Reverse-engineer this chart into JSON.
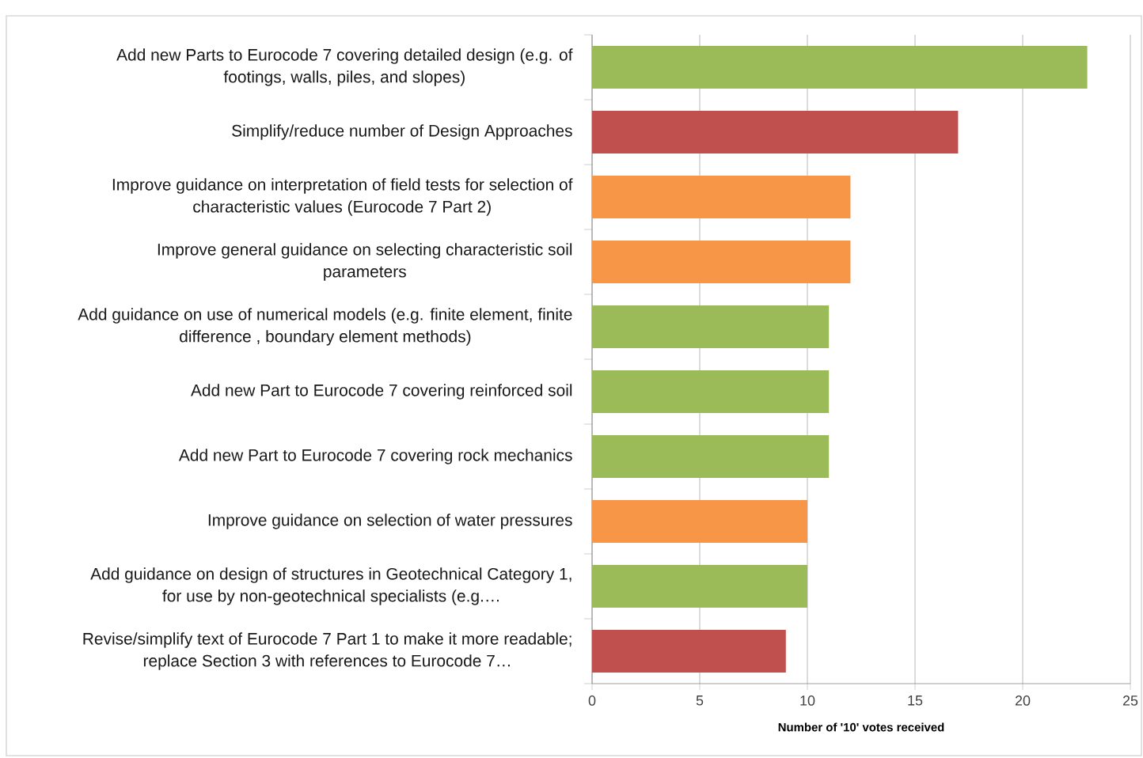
{
  "chart_data": {
    "type": "bar",
    "orientation": "horizontal",
    "xlabel": "Number of '10' votes received",
    "categories": [
      "Add new Parts to Eurocode 7 covering detailed design (e.g. of footings, walls, piles, and slopes)",
      "Simplify/reduce number of Design Approaches",
      "Improve guidance on interpretation of field tests for selection of characteristic values (Eurocode 7 Part 2)",
      "Improve general guidance on selecting characteristic soil parameters",
      "Add guidance on use of numerical models (e.g. finite element, finite difference , boundary element methods)",
      "Add new Part to Eurocode 7 covering reinforced soil",
      "Add new Part to Eurocode 7 covering rock mechanics",
      "Improve guidance on selection of water pressures",
      "Add guidance on design of structures in Geotechnical Category 1, for use by non-geotechnical specialists (e.g.…",
      "Revise/simplify text of Eurocode 7 Part 1 to make it more readable; replace Section 3 with references to Eurocode 7…"
    ],
    "values": [
      23,
      17,
      12,
      12,
      11,
      11,
      11,
      10,
      10,
      9
    ],
    "colors": [
      "#9bbb59",
      "#c0504d",
      "#f79646",
      "#f79646",
      "#9bbb59",
      "#9bbb59",
      "#9bbb59",
      "#f79646",
      "#9bbb59",
      "#c0504d"
    ],
    "xlim": [
      0,
      25
    ],
    "xticks": [
      0,
      5,
      10,
      15,
      20,
      25
    ],
    "grid": "x"
  }
}
